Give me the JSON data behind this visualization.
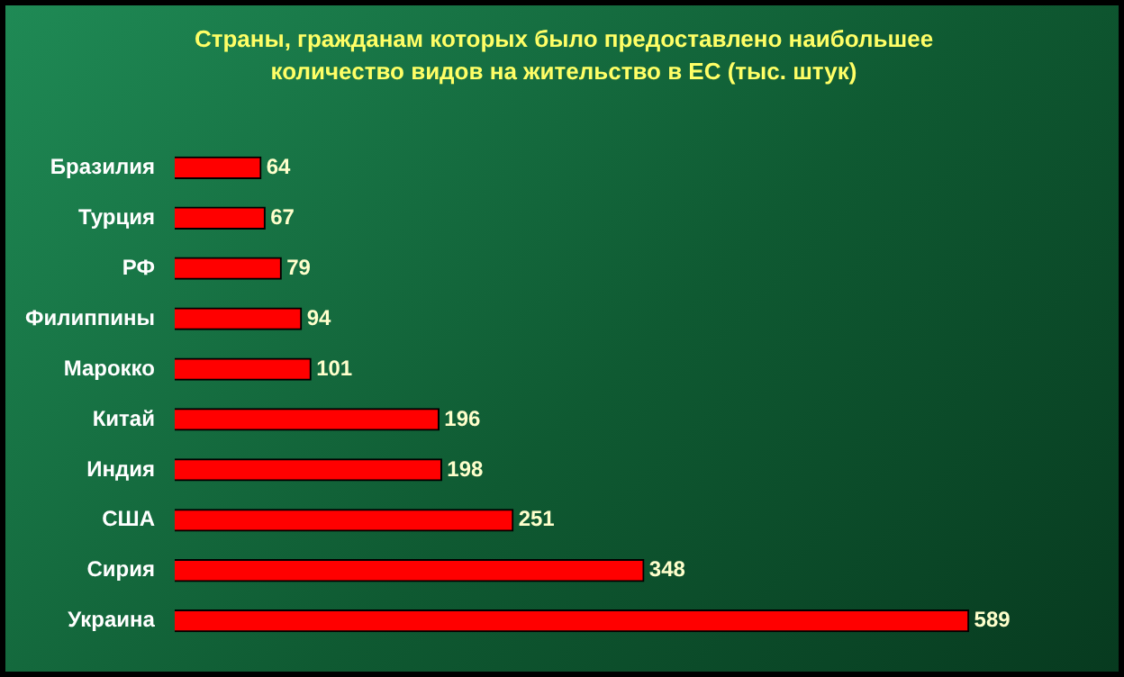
{
  "chart_data": {
    "type": "bar",
    "orientation": "horizontal",
    "title": "Страны, гражданам которых было предоставлено наибольшее количество видов на жительство в ЕС (тыс. штук)",
    "categories": [
      "Бразилия",
      "Турция",
      "РФ",
      "Филиппины",
      "Марокко",
      "Китай",
      "Индия",
      "США",
      "Сирия",
      "Украина"
    ],
    "values": [
      64,
      67,
      79,
      94,
      101,
      196,
      198,
      251,
      348,
      589
    ],
    "color": "#ff0000",
    "data_labels": true,
    "legend": false,
    "tick_labels": "y"
  }
}
